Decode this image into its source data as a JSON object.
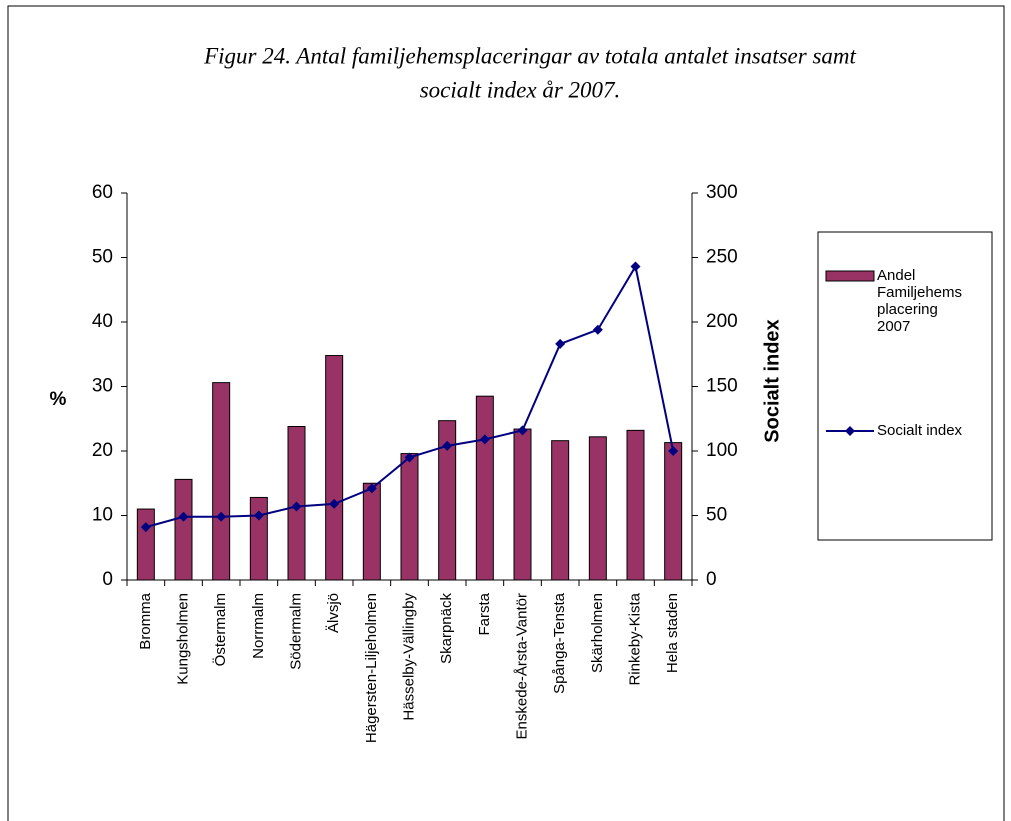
{
  "chart_data": {
    "type": "bar-line",
    "title_lines": [
      "Figur 24. Antal familjehemsplaceringar av totala antalet insatser samt",
      "socialt index år 2007."
    ],
    "y_label": "%",
    "y2_label": "Socialt index",
    "categories": [
      "Bromma",
      "Kungsholmen",
      "Östermalm",
      "Norrmalm",
      "Södermalm",
      "Älvsjö",
      "Hägersten-Liljeholmen",
      "Hässelby-Vällingby",
      "Skarpnäck",
      "Farsta",
      "Enskede-Årsta-Vantör",
      "Spånga-Tensta",
      "Skärholmen",
      "Rinkeby-Kista",
      "Hela staden"
    ],
    "series": [
      {
        "name": "Andel Familjehems placering 2007",
        "type": "bar",
        "color": "#993366",
        "values": [
          11,
          15.6,
          30.6,
          12.8,
          23.8,
          34.8,
          15,
          19.6,
          24.7,
          28.5,
          23.4,
          21.6,
          22.2,
          23.2,
          21.3
        ]
      },
      {
        "name": "Socialt index",
        "type": "line",
        "axis": "y2",
        "color": "#000080",
        "values": [
          41,
          49,
          49,
          50,
          57,
          59,
          71,
          95,
          104,
          109,
          116,
          183,
          194,
          243,
          100
        ]
      }
    ],
    "ylim": [
      0,
      60
    ],
    "yticks": [
      0,
      10,
      20,
      30,
      40,
      50,
      60
    ],
    "y2lim": [
      0,
      300
    ],
    "y2ticks": [
      0,
      50,
      100,
      150,
      200,
      250,
      300
    ],
    "legend": "right"
  }
}
